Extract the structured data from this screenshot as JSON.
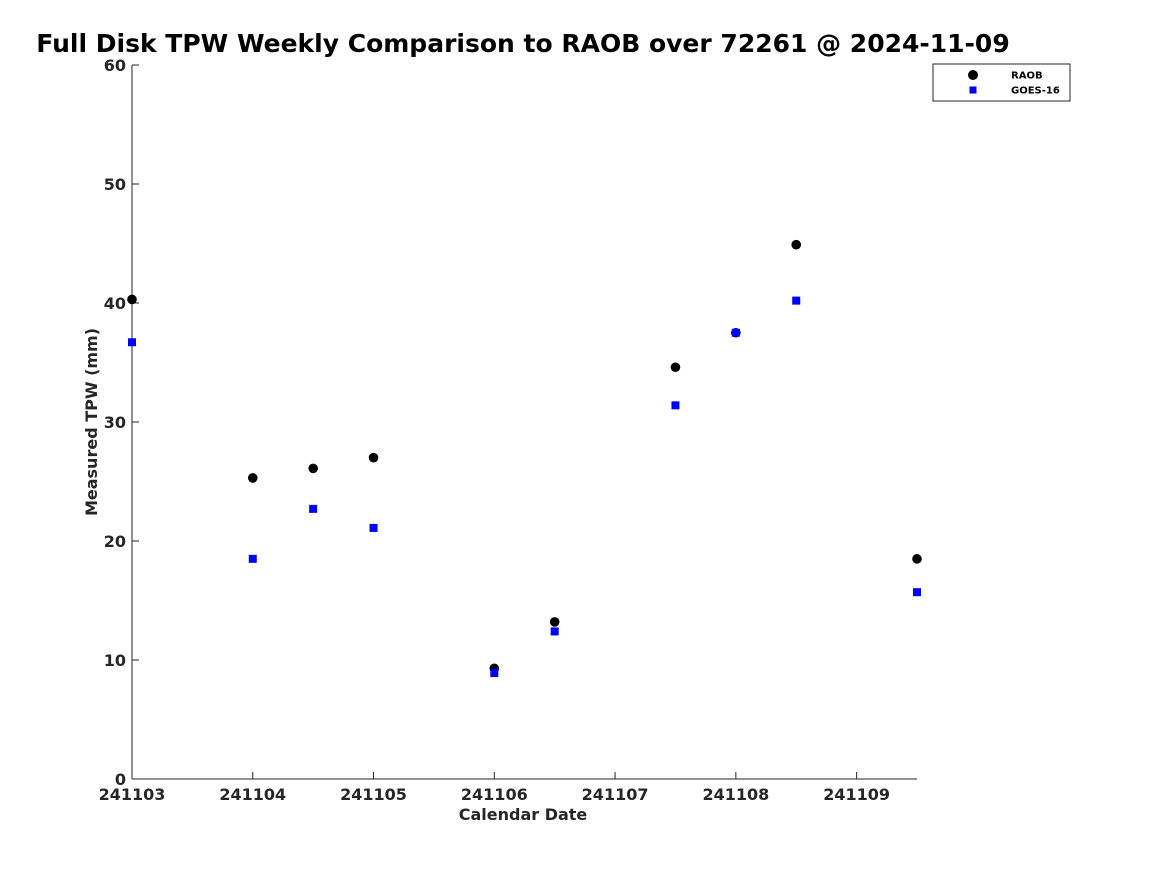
{
  "chart_data": {
    "type": "scatter",
    "title": "Full Disk TPW Weekly Comparison to RAOB over 72261 @ 2024-11-09",
    "xlabel": "Calendar Date",
    "ylabel": "Measured TPW (mm)",
    "xlim": [
      241103,
      241109.5
    ],
    "ylim": [
      0,
      60
    ],
    "xticks": [
      241103,
      241104,
      241105,
      241106,
      241107,
      241108,
      241109
    ],
    "xtick_labels": [
      "241103",
      "241104",
      "241105",
      "241106",
      "241107",
      "241108",
      "241109"
    ],
    "yticks": [
      0,
      10,
      20,
      30,
      40,
      50,
      60
    ],
    "ytick_labels": [
      "0",
      "10",
      "20",
      "30",
      "40",
      "50",
      "60"
    ],
    "grid": false,
    "legend_position": "top-right",
    "series": [
      {
        "name": "RAOB",
        "marker": "circle",
        "color": "#000000",
        "x": [
          241103,
          241104,
          241104.5,
          241105,
          241106,
          241106.5,
          241107.5,
          241108,
          241108.5,
          241109.5
        ],
        "y": [
          40.3,
          25.3,
          26.1,
          27.0,
          9.3,
          13.2,
          34.6,
          37.5,
          44.9,
          18.5
        ]
      },
      {
        "name": "GOES-16",
        "marker": "square",
        "color": "#0000ff",
        "x": [
          241103,
          241104,
          241104.5,
          241105,
          241106,
          241106.5,
          241107.5,
          241108,
          241108.5,
          241109.5
        ],
        "y": [
          36.7,
          18.5,
          22.7,
          21.1,
          8.9,
          12.4,
          31.4,
          37.5,
          40.2,
          15.7
        ]
      }
    ]
  }
}
